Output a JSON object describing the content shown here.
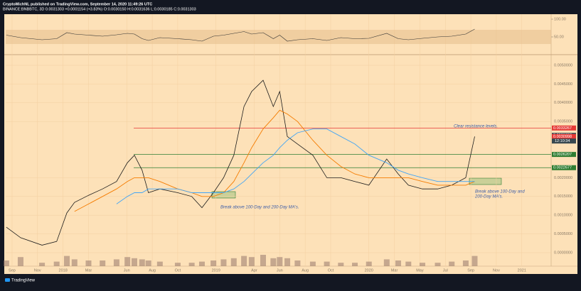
{
  "header": {
    "line1": "CryptoMichNL published on TradingView.com, September 14, 2020 11:49:26 UTC",
    "line2": "BINANCE:BNBBTC, 3D 0.0031303 +0.0001154 (+3.83%) O:0.0030150 H:0.0031636 L:0.0030185 C:0.0031303"
  },
  "chart_data": {
    "type": "line",
    "x": [
      -0.45,
      0.67,
      2.35,
      3.5,
      4.3,
      4.9,
      6.0,
      7.1,
      8.2,
      9.05,
      9.6,
      10.2,
      10.7,
      11.6,
      13.0,
      14.1,
      14.9,
      15.8,
      16.6,
      17.4,
      18.2,
      18.8,
      19.7,
      20.5,
      21.0,
      21.6,
      22.4,
      23.6,
      24.7,
      25.8,
      26.9,
      28.0,
      29.4,
      30.3,
      31.1,
      32.2,
      33.4,
      34.5,
      35.6,
      36.3
    ],
    "xlim": [
      -0.5,
      42.3
    ],
    "xticks": [
      {
        "value": 0,
        "label": "Sep"
      },
      {
        "value": 2,
        "label": "Nov"
      },
      {
        "value": 4,
        "label": "2018"
      },
      {
        "value": 6,
        "label": "Mar"
      },
      {
        "value": 9,
        "label": "Jun"
      },
      {
        "value": 11,
        "label": "Aug"
      },
      {
        "value": 13,
        "label": "Oct"
      },
      {
        "value": 16,
        "label": "2019"
      },
      {
        "value": 19,
        "label": "Apr"
      },
      {
        "value": 21,
        "label": "Jun"
      },
      {
        "value": 23,
        "label": "Aug"
      },
      {
        "value": 25,
        "label": "Oct"
      },
      {
        "value": 28,
        "label": "2020"
      },
      {
        "value": 30,
        "label": "Mar"
      },
      {
        "value": 32,
        "label": "May"
      },
      {
        "value": 34,
        "label": "Jul"
      },
      {
        "value": 36,
        "label": "Sep"
      },
      {
        "value": 38,
        "label": "Nov"
      },
      {
        "value": 40,
        "label": "2021"
      }
    ],
    "ylim": [
      -0.00036,
      0.005227
    ],
    "yticks": [
      {
        "value": 0.005,
        "label": "0.0050000"
      },
      {
        "value": 0.0045,
        "label": "0.0045000"
      },
      {
        "value": 0.004,
        "label": "0.0040000"
      },
      {
        "value": 0.0035,
        "label": "0.0035000"
      },
      {
        "value": 0.002,
        "label": "0.0020000"
      },
      {
        "value": 0.0015,
        "label": "0.0015000"
      },
      {
        "value": 0.001,
        "label": "0.0010000"
      },
      {
        "value": 0.0005,
        "label": "0.0005000"
      },
      {
        "value": 0,
        "label": "0.0000000"
      }
    ],
    "series": [
      {
        "color": "#1b1b1b",
        "values": [
          0.00068,
          0.0004,
          0.0002,
          0.0003,
          0.00106,
          0.00134,
          0.00153,
          0.0017,
          0.0019,
          0.0024,
          0.0026,
          0.0022,
          0.0016,
          0.0017,
          0.0016,
          0.0015,
          0.0012,
          0.0016,
          0.002,
          0.0026,
          0.0039,
          0.0043,
          0.0046,
          0.0039,
          0.0043,
          0.0031,
          0.0029,
          0.0026,
          0.002,
          0.002,
          0.0019,
          0.0018,
          0.0025,
          0.0021,
          0.0018,
          0.0017,
          0.0017,
          0.0018,
          0.002,
          0.0031
        ]
      },
      {
        "color": "#f57c00",
        "values": [
          null,
          null,
          null,
          null,
          null,
          0.0011,
          0.0013,
          0.0015,
          0.0017,
          0.0019,
          0.002,
          0.002,
          0.002,
          0.0019,
          0.0017,
          0.0016,
          0.0015,
          0.0015,
          0.0016,
          0.0019,
          0.0024,
          0.0028,
          0.0033,
          0.0036,
          0.0038,
          0.0037,
          0.0035,
          0.003,
          0.0026,
          0.0023,
          0.0021,
          0.002,
          0.002,
          0.002,
          0.002,
          0.0019,
          0.0018,
          0.0018,
          0.0018,
          0.0019
        ]
      },
      {
        "color": "#42a5f5",
        "values": [
          null,
          null,
          null,
          null,
          null,
          null,
          null,
          null,
          0.0013,
          0.0015,
          0.0016,
          0.0016,
          0.0017,
          0.0017,
          0.0017,
          0.0016,
          0.0016,
          0.0016,
          0.0016,
          0.0017,
          0.0019,
          0.0021,
          0.0024,
          0.0026,
          0.0028,
          0.003,
          0.0032,
          0.0033,
          0.0033,
          0.0031,
          0.0029,
          0.0026,
          0.0024,
          0.0022,
          0.0021,
          0.002,
          0.0019,
          0.0019,
          0.0019,
          0.0019
        ]
      }
    ],
    "volume": {
      "color": "#8d6e63",
      "values": [
        5,
        8,
        3,
        4,
        9,
        6,
        5,
        5,
        6,
        8,
        7,
        6,
        5,
        4,
        3,
        3,
        4,
        5,
        6,
        7,
        9,
        8,
        10,
        7,
        8,
        7,
        5,
        4,
        4,
        3,
        3,
        4,
        6,
        5,
        4,
        3,
        3,
        4,
        5,
        9
      ]
    },
    "rsi": {
      "color": "#333333",
      "ylim": [
        0,
        100
      ],
      "yticks": [
        {
          "value": 100,
          "label": "100.00"
        },
        {
          "value": 50,
          "label": "50.00"
        }
      ],
      "band": [
        30,
        70
      ],
      "values": [
        55,
        48,
        42,
        45,
        62,
        58,
        55,
        52,
        56,
        60,
        58,
        45,
        40,
        48,
        45,
        42,
        38,
        52,
        55,
        60,
        65,
        58,
        62,
        45,
        55,
        38,
        42,
        45,
        40,
        48,
        45,
        46,
        60,
        45,
        42,
        46,
        50,
        52,
        58,
        72
      ]
    },
    "levels": [
      {
        "value": 0.0033267,
        "label": "0.0033267",
        "color": "#e53935",
        "line": true
      },
      {
        "value": 0.0031303,
        "label": "0.0031303",
        "color": "#37474f",
        "line": false
      },
      {
        "value": 0.0030998,
        "label": "0.0030998",
        "color": "#e53935",
        "line": false
      },
      {
        "value": 0.0026207,
        "label": "0.0026207",
        "color": "#2e7d32",
        "line": true
      },
      {
        "value": 0.0022677,
        "label": "0.0022677",
        "color": "#2e7d32",
        "line": true
      }
    ],
    "countdown": "12:10:34",
    "annotations": [
      "Clear resistance levels.",
      "Break above 100-Day and 200-Day MA's.",
      "Break above 100-Day and",
      "200-Day MA's."
    ]
  },
  "footer": "TradingView"
}
